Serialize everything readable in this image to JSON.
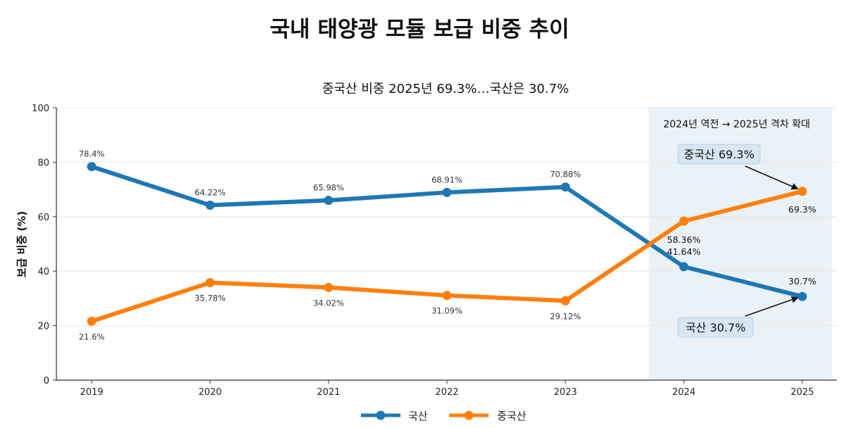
{
  "chart_data": {
    "type": "line",
    "title": "국내 태양광 모듈 보급 비중 추이",
    "subtitle": "중국산 비중 2025년 69.3%…국산은 30.7%",
    "ylabel": "보급 비중 (%)",
    "xlabel": "",
    "ylim": [
      0,
      100
    ],
    "yticks": [
      0,
      20,
      40,
      60,
      80,
      100
    ],
    "categories": [
      "2019",
      "2020",
      "2021",
      "2022",
      "2023",
      "2024",
      "2025"
    ],
    "grid": "horizontal",
    "legend_position": "bottom-center",
    "series": [
      {
        "name": "국산",
        "color": "#1f77b4",
        "values": [
          78.4,
          64.22,
          65.98,
          68.91,
          70.88,
          41.64,
          30.7
        ],
        "labels": [
          "78.4%",
          "64.22%",
          "65.98%",
          "68.91%",
          "70.88%",
          "41.64%",
          "30.7%"
        ]
      },
      {
        "name": "중국산",
        "color": "#ff7f0e",
        "values": [
          21.6,
          35.78,
          34.02,
          31.09,
          29.12,
          58.36,
          69.3
        ],
        "labels": [
          "21.6%",
          "35.78%",
          "34.02%",
          "31.09%",
          "29.12%",
          "58.36%",
          "69.3%"
        ]
      }
    ],
    "highlight": {
      "from": "2024",
      "to": "2025",
      "note": "2024년 역전 → 2025년 격차 확대",
      "color": "#dce9f4"
    },
    "annotations": [
      {
        "text": "중국산 69.3%",
        "category": "2025",
        "value": 69.3
      },
      {
        "text": "국산 30.7%",
        "category": "2025",
        "value": 30.7
      }
    ]
  }
}
